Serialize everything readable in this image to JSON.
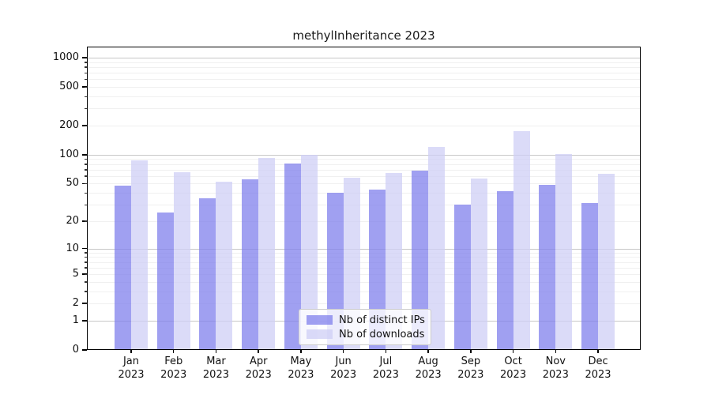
{
  "chart_data": {
    "type": "bar",
    "title": "methylInheritance 2023",
    "categories": [
      "Jan 2023",
      "Feb 2023",
      "Mar 2023",
      "Apr 2023",
      "May 2023",
      "Jun 2023",
      "Jul 2023",
      "Aug 2023",
      "Sep 2023",
      "Oct 2023",
      "Nov 2023",
      "Dec 2023"
    ],
    "series": [
      {
        "name": "Nb of distinct IPs",
        "color": "#8080ec",
        "values": [
          48,
          25,
          35,
          55,
          81,
          40,
          43,
          68,
          30,
          42,
          49,
          31
        ]
      },
      {
        "name": "Nb of downloads",
        "color": "#cfcff6",
        "values": [
          88,
          66,
          52,
          93,
          100,
          58,
          65,
          120,
          57,
          175,
          102,
          63
        ]
      }
    ],
    "bar_alpha": 0.75,
    "xlabel": "",
    "ylabel": "",
    "yscale": "log10(1+y)",
    "yticks": [
      0,
      1,
      2,
      5,
      10,
      20,
      50,
      100,
      200,
      500,
      1000
    ],
    "ylim": [
      0,
      1300
    ],
    "grid": "both",
    "grid_major_color": "#c7c7c7",
    "grid_minor_color": "#f0f0f0",
    "legend_position": "lower center"
  }
}
